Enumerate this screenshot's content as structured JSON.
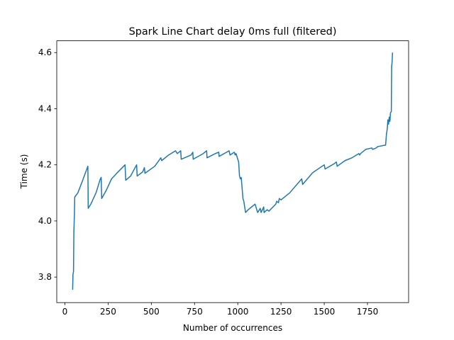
{
  "chart_data": {
    "type": "line",
    "title": "Spark Line Chart delay 0ms full (filtered)",
    "x_label": "Number of occurrences",
    "y_label": "Time (s)",
    "x": [
      45,
      47,
      50,
      52,
      55,
      57,
      75,
      100,
      130,
      133,
      135,
      150,
      180,
      205,
      210,
      213,
      240,
      270,
      300,
      340,
      348,
      352,
      380,
      415,
      418,
      450,
      460,
      463,
      520,
      555,
      560,
      600,
      640,
      650,
      670,
      673,
      730,
      740,
      742,
      800,
      820,
      822,
      870,
      890,
      892,
      950,
      955,
      980,
      985,
      990,
      1000,
      1005,
      1010,
      1015,
      1020,
      1030,
      1035,
      1040,
      1045,
      1060,
      1080,
      1100,
      1105,
      1110,
      1115,
      1125,
      1130,
      1135,
      1150,
      1152,
      1170,
      1180,
      1220,
      1225,
      1235,
      1240,
      1250,
      1300,
      1370,
      1375,
      1430,
      1440,
      1500,
      1505,
      1560,
      1570,
      1575,
      1620,
      1660,
      1700,
      1705,
      1710,
      1740,
      1775,
      1780,
      1800,
      1810,
      1850,
      1855,
      1860,
      1865,
      1868,
      1872,
      1876,
      1880,
      1883,
      1888,
      1890,
      1893,
      1895
    ],
    "series": [
      {
        "name": "Time",
        "color": "#1f77b4",
        "values": [
          3.755,
          3.81,
          3.82,
          3.96,
          4.02,
          4.085,
          4.1,
          4.14,
          4.19,
          4.195,
          4.045,
          4.06,
          4.1,
          4.15,
          4.155,
          4.08,
          4.11,
          4.15,
          4.17,
          4.195,
          4.2,
          4.145,
          4.16,
          4.2,
          4.16,
          4.175,
          4.19,
          4.17,
          4.195,
          4.225,
          4.215,
          4.235,
          4.25,
          4.24,
          4.25,
          4.22,
          4.235,
          4.245,
          4.22,
          4.24,
          4.25,
          4.225,
          4.24,
          4.245,
          4.23,
          4.25,
          4.235,
          4.245,
          4.235,
          4.24,
          4.22,
          4.21,
          4.16,
          4.15,
          4.155,
          4.08,
          4.07,
          4.05,
          4.03,
          4.04,
          4.05,
          4.06,
          4.05,
          4.04,
          4.03,
          4.04,
          4.045,
          4.03,
          4.05,
          4.03,
          4.04,
          4.035,
          4.06,
          4.07,
          4.065,
          4.08,
          4.075,
          4.1,
          4.15,
          4.13,
          4.17,
          4.175,
          4.2,
          4.185,
          4.205,
          4.21,
          4.195,
          4.215,
          4.225,
          4.24,
          4.235,
          4.24,
          4.255,
          4.26,
          4.255,
          4.26,
          4.265,
          4.27,
          4.27,
          4.31,
          4.33,
          4.36,
          4.345,
          4.37,
          4.355,
          4.385,
          4.39,
          4.55,
          4.57,
          4.6
        ]
      }
    ],
    "xlim": [
      -47,
      1988
    ],
    "ylim": [
      3.709,
      4.642
    ],
    "xticks": [
      0,
      250,
      500,
      750,
      1000,
      1250,
      1500,
      1750
    ],
    "yticks": [
      {
        "value": 3.8,
        "label": "3.8"
      },
      {
        "value": 4.0,
        "label": "4.0"
      },
      {
        "value": 4.2,
        "label": "4.2"
      },
      {
        "value": 4.4,
        "label": "4.4"
      },
      {
        "value": 4.6,
        "label": "4.6"
      }
    ]
  }
}
